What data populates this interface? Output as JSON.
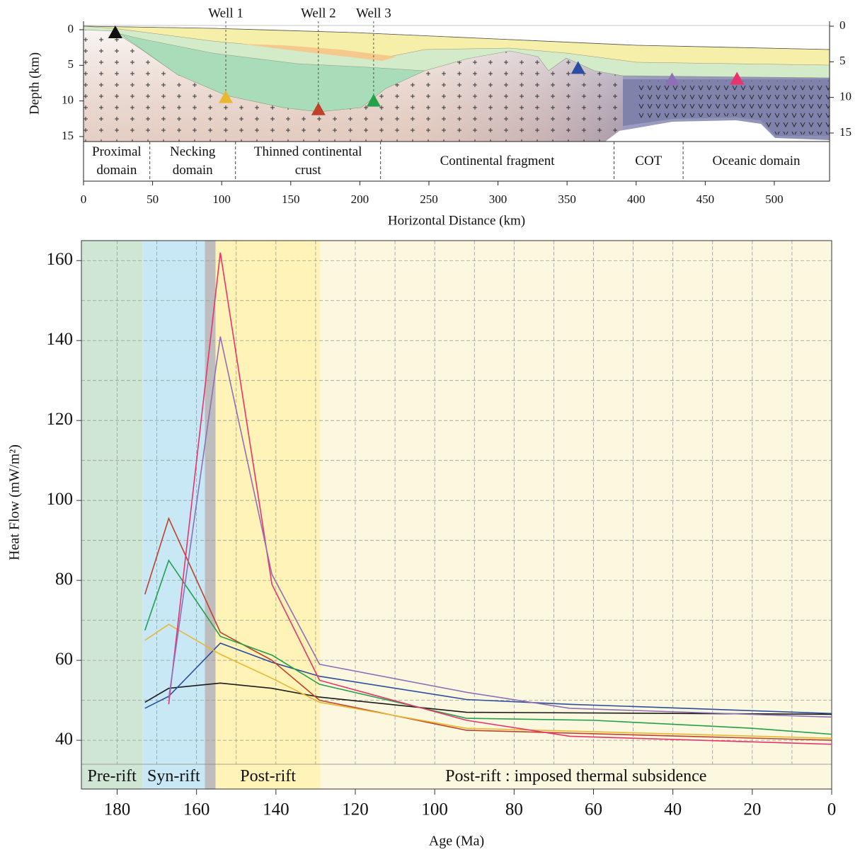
{
  "chart_data": [
    {
      "type": "section",
      "xlabel": "Horizontal Distance (km)",
      "ylabel": "Depth (km)",
      "xlim": [
        0,
        540
      ],
      "ylim": [
        0,
        15.7
      ],
      "xticks": [
        0,
        50,
        100,
        150,
        200,
        250,
        300,
        350,
        400,
        450,
        500
      ],
      "yticks": [
        0,
        5,
        10,
        15
      ],
      "domains": [
        {
          "label": "Proximal domain",
          "start": 0,
          "end": 48
        },
        {
          "label": "Necking domain",
          "start": 48,
          "end": 110
        },
        {
          "label": "Thinned continental crust",
          "start": 110,
          "end": 215
        },
        {
          "label": "Continental fragment",
          "start": 215,
          "end": 384
        },
        {
          "label": "COT",
          "start": 384,
          "end": 434
        },
        {
          "label": "Oceanic domain",
          "start": 434,
          "end": 540
        }
      ],
      "wells": [
        {
          "x": 23,
          "depth": 0.4,
          "color": "#111111"
        },
        {
          "label": "Well 1",
          "x": 103,
          "depth": 9.5,
          "color": "#e8b830"
        },
        {
          "label": "Well 2",
          "x": 170,
          "depth": 11.2,
          "color": "#c0412a"
        },
        {
          "label": "Well 3",
          "x": 210,
          "depth": 10,
          "color": "#23a04a"
        },
        {
          "x": 358,
          "depth": 5.4,
          "color": "#2b4ea0"
        },
        {
          "x": 426,
          "depth": 7,
          "color": "#8e6fb8"
        },
        {
          "x": 473,
          "depth": 6.9,
          "color": "#e8336d"
        }
      ]
    },
    {
      "type": "line",
      "xlabel": "Age (Ma)",
      "ylabel": "Heat Flow (mW/m²)",
      "xlim": [
        189,
        0
      ],
      "ylim": [
        34,
        165
      ],
      "xticks": [
        180,
        160,
        140,
        120,
        100,
        80,
        60,
        40,
        20,
        0
      ],
      "yticks": [
        40,
        60,
        80,
        100,
        120,
        140,
        160
      ],
      "xgrid": [
        180,
        170,
        160,
        150,
        140,
        130,
        120,
        110,
        100,
        90,
        80,
        70,
        60,
        50,
        40,
        30,
        20,
        10
      ],
      "ygrid": [
        40,
        50,
        60,
        70,
        80,
        90,
        100,
        110,
        120,
        130,
        140,
        150,
        160
      ],
      "phases": [
        {
          "label": "Pre-rift",
          "start": 189,
          "end": 173.6,
          "color": "#cfe6d4"
        },
        {
          "label": "Syn-rift",
          "start": 173.6,
          "end": 157.9,
          "color": "#c8e8f5"
        },
        {
          "start": 157.9,
          "end": 155.2,
          "color": "#bdbdbd"
        },
        {
          "label": "Post-rift",
          "start": 155.2,
          "end": 128.8,
          "color": "#fff3b8"
        },
        {
          "label": "Post-rift : imposed thermal subsidence",
          "start": 128.8,
          "end": 0,
          "color": "#fcf8df"
        }
      ],
      "series": [
        {
          "color": "#1a1a1a",
          "x": [
            173,
            167,
            154,
            141,
            129,
            92,
            0
          ],
          "values": [
            49.5,
            53,
            54.3,
            53,
            50.8,
            47,
            46.5
          ]
        },
        {
          "color": "#2b4ea0",
          "x": [
            173,
            167,
            154,
            141,
            129,
            92,
            66,
            0
          ],
          "values": [
            48,
            51,
            64.3,
            59.5,
            56,
            50.2,
            49,
            46.7
          ]
        },
        {
          "color": "#c0412a",
          "x": [
            173,
            167,
            154,
            141,
            129,
            92,
            0
          ],
          "values": [
            76.5,
            95.5,
            67,
            60,
            50,
            42.5,
            40
          ]
        },
        {
          "color": "#23a04a",
          "x": [
            173,
            167,
            154,
            141,
            129,
            92,
            60,
            20,
            0
          ],
          "values": [
            67.5,
            85,
            66,
            61.3,
            54,
            45.5,
            45,
            43,
            41.5
          ]
        },
        {
          "color": "#e8b830",
          "x": [
            173,
            167,
            154,
            141,
            129,
            92,
            0
          ],
          "values": [
            65,
            69,
            61.5,
            55.5,
            49.5,
            43,
            40.5
          ]
        },
        {
          "color": "#e8336d",
          "x": [
            167,
            154,
            141,
            129,
            92,
            66,
            0
          ],
          "values": [
            49,
            162,
            79,
            55,
            45,
            41,
            39
          ]
        },
        {
          "color": "#8e6fb8",
          "x": [
            167,
            154,
            141,
            129,
            92,
            66,
            0
          ],
          "values": [
            50.5,
            141,
            81.5,
            59,
            52,
            48,
            45.8
          ]
        }
      ]
    }
  ]
}
